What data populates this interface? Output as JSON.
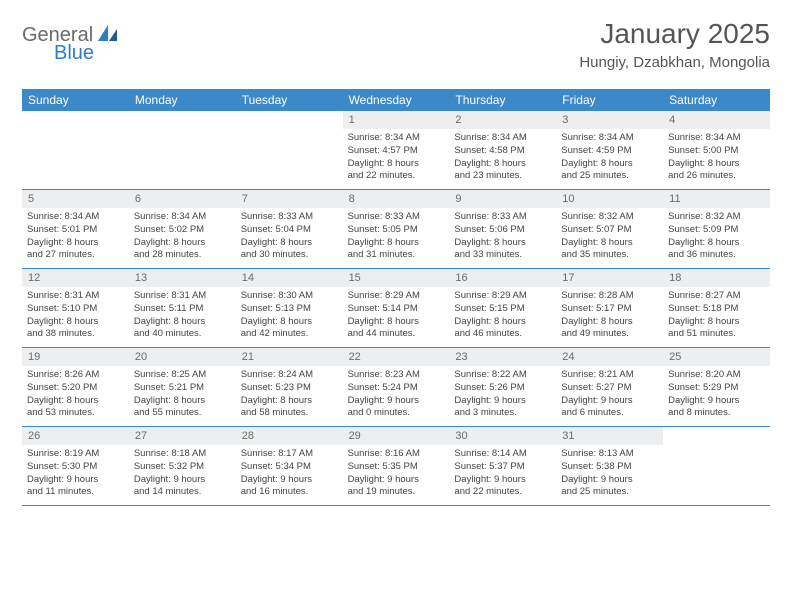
{
  "brand": {
    "part1": "General",
    "part2": "Blue"
  },
  "title": "January 2025",
  "location": "Hungiy, Dzabkhan, Mongolia",
  "colors": {
    "header_bg": "#3b89c9",
    "header_text": "#ffffff",
    "daynum_bg": "#eceeef",
    "daynum_text": "#6b6b6b",
    "body_text": "#444444",
    "row_border": "#3b89c9",
    "brand_gray": "#6a6a6a",
    "brand_blue": "#2f7dc4"
  },
  "day_headers": [
    "Sunday",
    "Monday",
    "Tuesday",
    "Wednesday",
    "Thursday",
    "Friday",
    "Saturday"
  ],
  "weeks": [
    [
      {
        "n": "",
        "lines": [
          "",
          "",
          "",
          ""
        ],
        "empty": true
      },
      {
        "n": "",
        "lines": [
          "",
          "",
          "",
          ""
        ],
        "empty": true
      },
      {
        "n": "",
        "lines": [
          "",
          "",
          "",
          ""
        ],
        "empty": true
      },
      {
        "n": "1",
        "lines": [
          "Sunrise: 8:34 AM",
          "Sunset: 4:57 PM",
          "Daylight: 8 hours",
          "and 22 minutes."
        ]
      },
      {
        "n": "2",
        "lines": [
          "Sunrise: 8:34 AM",
          "Sunset: 4:58 PM",
          "Daylight: 8 hours",
          "and 23 minutes."
        ]
      },
      {
        "n": "3",
        "lines": [
          "Sunrise: 8:34 AM",
          "Sunset: 4:59 PM",
          "Daylight: 8 hours",
          "and 25 minutes."
        ]
      },
      {
        "n": "4",
        "lines": [
          "Sunrise: 8:34 AM",
          "Sunset: 5:00 PM",
          "Daylight: 8 hours",
          "and 26 minutes."
        ]
      }
    ],
    [
      {
        "n": "5",
        "lines": [
          "Sunrise: 8:34 AM",
          "Sunset: 5:01 PM",
          "Daylight: 8 hours",
          "and 27 minutes."
        ]
      },
      {
        "n": "6",
        "lines": [
          "Sunrise: 8:34 AM",
          "Sunset: 5:02 PM",
          "Daylight: 8 hours",
          "and 28 minutes."
        ]
      },
      {
        "n": "7",
        "lines": [
          "Sunrise: 8:33 AM",
          "Sunset: 5:04 PM",
          "Daylight: 8 hours",
          "and 30 minutes."
        ]
      },
      {
        "n": "8",
        "lines": [
          "Sunrise: 8:33 AM",
          "Sunset: 5:05 PM",
          "Daylight: 8 hours",
          "and 31 minutes."
        ]
      },
      {
        "n": "9",
        "lines": [
          "Sunrise: 8:33 AM",
          "Sunset: 5:06 PM",
          "Daylight: 8 hours",
          "and 33 minutes."
        ]
      },
      {
        "n": "10",
        "lines": [
          "Sunrise: 8:32 AM",
          "Sunset: 5:07 PM",
          "Daylight: 8 hours",
          "and 35 minutes."
        ]
      },
      {
        "n": "11",
        "lines": [
          "Sunrise: 8:32 AM",
          "Sunset: 5:09 PM",
          "Daylight: 8 hours",
          "and 36 minutes."
        ]
      }
    ],
    [
      {
        "n": "12",
        "lines": [
          "Sunrise: 8:31 AM",
          "Sunset: 5:10 PM",
          "Daylight: 8 hours",
          "and 38 minutes."
        ]
      },
      {
        "n": "13",
        "lines": [
          "Sunrise: 8:31 AM",
          "Sunset: 5:11 PM",
          "Daylight: 8 hours",
          "and 40 minutes."
        ]
      },
      {
        "n": "14",
        "lines": [
          "Sunrise: 8:30 AM",
          "Sunset: 5:13 PM",
          "Daylight: 8 hours",
          "and 42 minutes."
        ]
      },
      {
        "n": "15",
        "lines": [
          "Sunrise: 8:29 AM",
          "Sunset: 5:14 PM",
          "Daylight: 8 hours",
          "and 44 minutes."
        ]
      },
      {
        "n": "16",
        "lines": [
          "Sunrise: 8:29 AM",
          "Sunset: 5:15 PM",
          "Daylight: 8 hours",
          "and 46 minutes."
        ]
      },
      {
        "n": "17",
        "lines": [
          "Sunrise: 8:28 AM",
          "Sunset: 5:17 PM",
          "Daylight: 8 hours",
          "and 49 minutes."
        ]
      },
      {
        "n": "18",
        "lines": [
          "Sunrise: 8:27 AM",
          "Sunset: 5:18 PM",
          "Daylight: 8 hours",
          "and 51 minutes."
        ]
      }
    ],
    [
      {
        "n": "19",
        "lines": [
          "Sunrise: 8:26 AM",
          "Sunset: 5:20 PM",
          "Daylight: 8 hours",
          "and 53 minutes."
        ]
      },
      {
        "n": "20",
        "lines": [
          "Sunrise: 8:25 AM",
          "Sunset: 5:21 PM",
          "Daylight: 8 hours",
          "and 55 minutes."
        ]
      },
      {
        "n": "21",
        "lines": [
          "Sunrise: 8:24 AM",
          "Sunset: 5:23 PM",
          "Daylight: 8 hours",
          "and 58 minutes."
        ]
      },
      {
        "n": "22",
        "lines": [
          "Sunrise: 8:23 AM",
          "Sunset: 5:24 PM",
          "Daylight: 9 hours",
          "and 0 minutes."
        ]
      },
      {
        "n": "23",
        "lines": [
          "Sunrise: 8:22 AM",
          "Sunset: 5:26 PM",
          "Daylight: 9 hours",
          "and 3 minutes."
        ]
      },
      {
        "n": "24",
        "lines": [
          "Sunrise: 8:21 AM",
          "Sunset: 5:27 PM",
          "Daylight: 9 hours",
          "and 6 minutes."
        ]
      },
      {
        "n": "25",
        "lines": [
          "Sunrise: 8:20 AM",
          "Sunset: 5:29 PM",
          "Daylight: 9 hours",
          "and 8 minutes."
        ]
      }
    ],
    [
      {
        "n": "26",
        "lines": [
          "Sunrise: 8:19 AM",
          "Sunset: 5:30 PM",
          "Daylight: 9 hours",
          "and 11 minutes."
        ]
      },
      {
        "n": "27",
        "lines": [
          "Sunrise: 8:18 AM",
          "Sunset: 5:32 PM",
          "Daylight: 9 hours",
          "and 14 minutes."
        ]
      },
      {
        "n": "28",
        "lines": [
          "Sunrise: 8:17 AM",
          "Sunset: 5:34 PM",
          "Daylight: 9 hours",
          "and 16 minutes."
        ]
      },
      {
        "n": "29",
        "lines": [
          "Sunrise: 8:16 AM",
          "Sunset: 5:35 PM",
          "Daylight: 9 hours",
          "and 19 minutes."
        ]
      },
      {
        "n": "30",
        "lines": [
          "Sunrise: 8:14 AM",
          "Sunset: 5:37 PM",
          "Daylight: 9 hours",
          "and 22 minutes."
        ]
      },
      {
        "n": "31",
        "lines": [
          "Sunrise: 8:13 AM",
          "Sunset: 5:38 PM",
          "Daylight: 9 hours",
          "and 25 minutes."
        ]
      },
      {
        "n": "",
        "lines": [
          "",
          "",
          "",
          ""
        ],
        "empty": true
      }
    ]
  ]
}
